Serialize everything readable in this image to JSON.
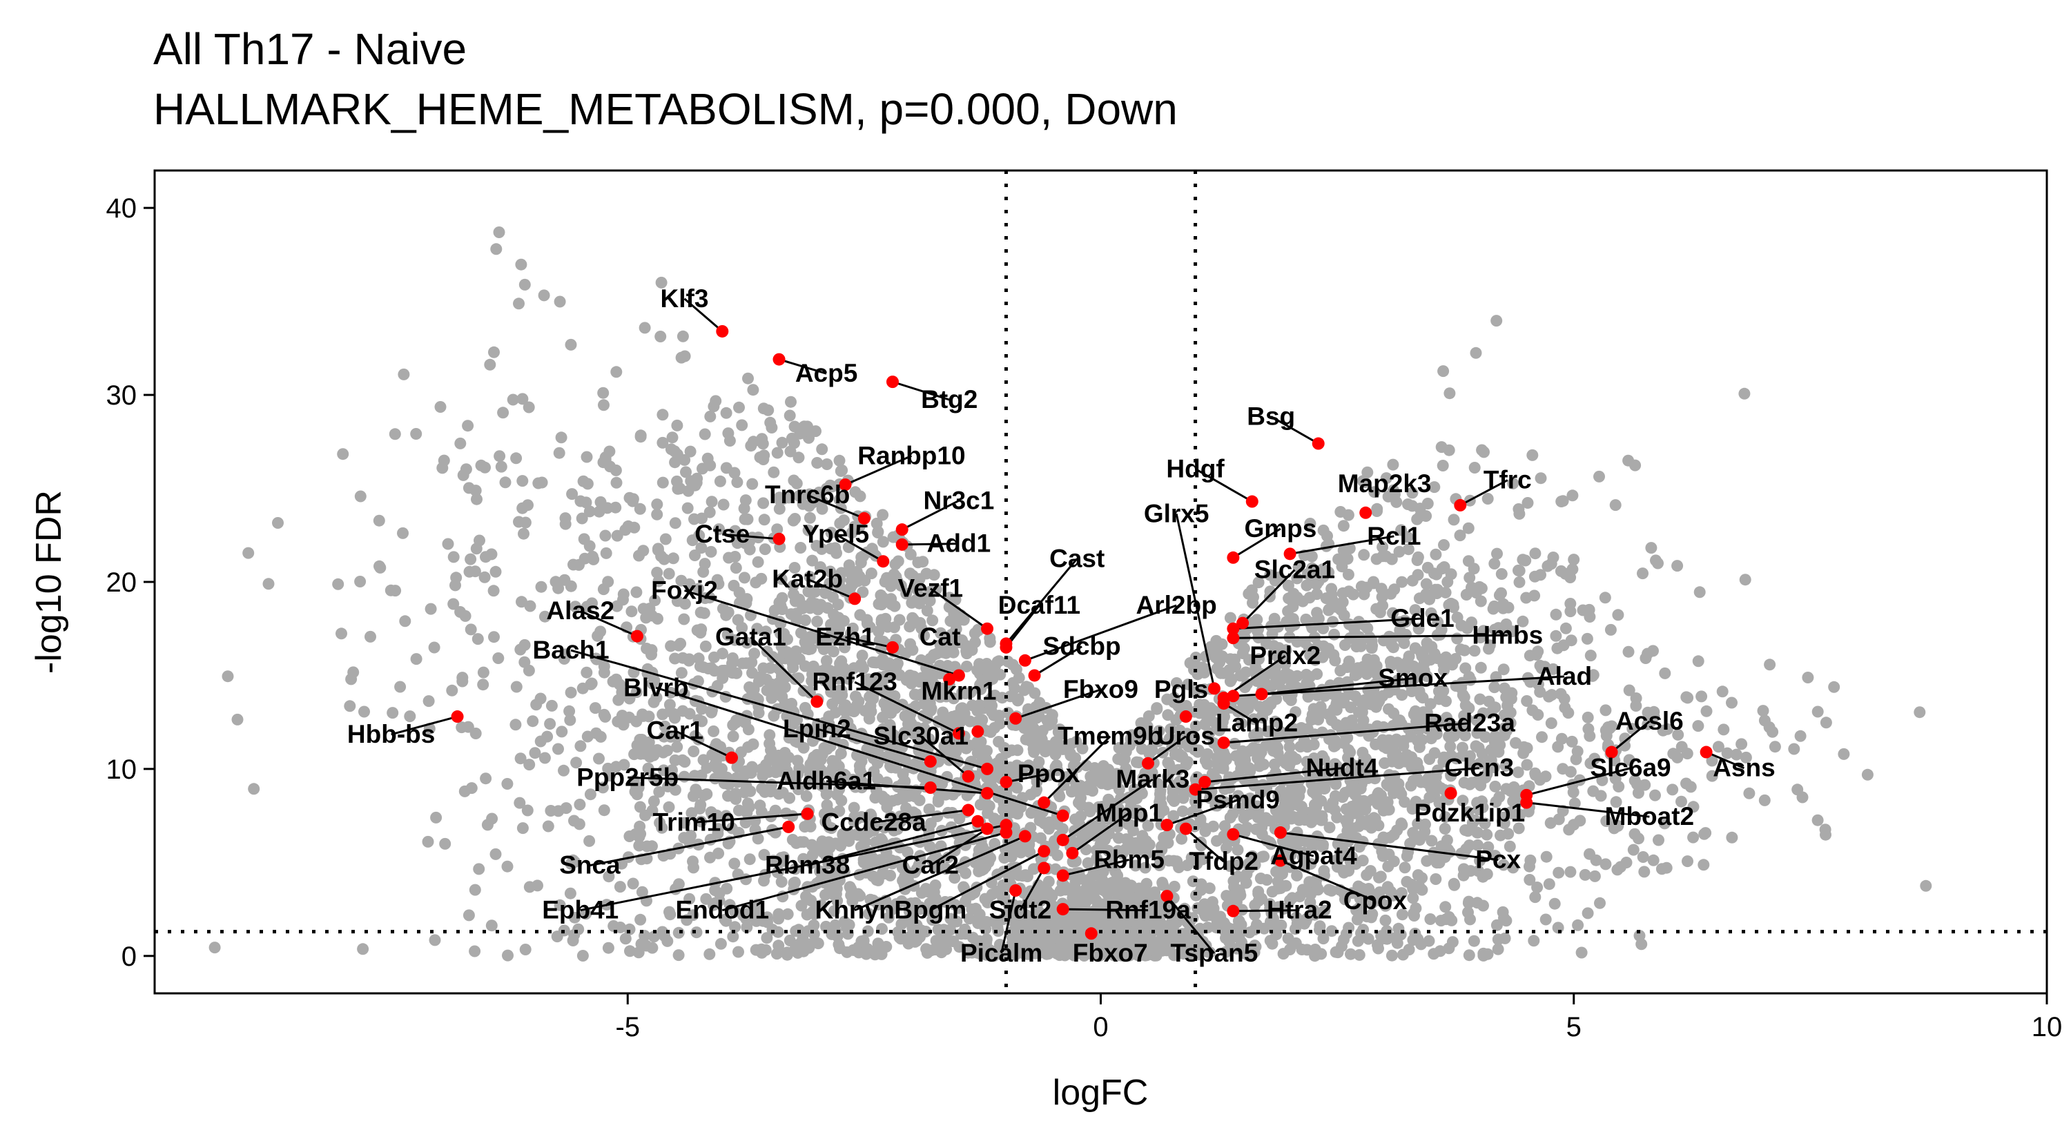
{
  "chart_data": {
    "type": "scatter",
    "title": "All Th17 - Naive",
    "subtitle": "HALLMARK_HEME_METABOLISM, p=0.000, Down",
    "xlabel": "logFC",
    "ylabel": "-log10 FDR",
    "xlim": [
      -10,
      10
    ],
    "ylim": [
      -2,
      42
    ],
    "x_ticks": [
      -5,
      0,
      5,
      10
    ],
    "y_ticks": [
      0,
      10,
      20,
      30,
      40
    ],
    "threshold_lines": {
      "logFC": [
        -1,
        1
      ],
      "neg_log10_fdr": 1.3
    },
    "grid": false,
    "colors": {
      "background_points": "#aaaaaa",
      "highlight_points": "#ff0000"
    },
    "highlighted_genes": [
      {
        "gene": "Klf3",
        "x": -4.0,
        "y": 33.4
      },
      {
        "gene": "Acp5",
        "x": -3.4,
        "y": 31.9
      },
      {
        "gene": "Btg2",
        "x": -2.2,
        "y": 30.7
      },
      {
        "gene": "Ranbp10",
        "x": -2.7,
        "y": 25.2
      },
      {
        "gene": "Tnrc6b",
        "x": -2.5,
        "y": 23.4
      },
      {
        "gene": "Nr3c1",
        "x": -2.1,
        "y": 22.8
      },
      {
        "gene": "Ctse",
        "x": -3.4,
        "y": 22.3
      },
      {
        "gene": "Ypel5",
        "x": -2.3,
        "y": 21.1
      },
      {
        "gene": "Add1",
        "x": -2.1,
        "y": 22.0
      },
      {
        "gene": "Kat2b",
        "x": -2.6,
        "y": 19.1
      },
      {
        "gene": "Foxj2",
        "x": -1.5,
        "y": 15.0
      },
      {
        "gene": "Alas2",
        "x": -4.9,
        "y": 17.1
      },
      {
        "gene": "Cast",
        "x": -1.0,
        "y": 16.7
      },
      {
        "gene": "Vezf1",
        "x": -1.2,
        "y": 17.5
      },
      {
        "gene": "Dcaf11",
        "x": -1.0,
        "y": 16.5
      },
      {
        "gene": "Arl2bp",
        "x": -0.8,
        "y": 15.8
      },
      {
        "gene": "Ezh1",
        "x": -2.2,
        "y": 16.5
      },
      {
        "gene": "Cat",
        "x": -1.6,
        "y": 14.8
      },
      {
        "gene": "Sdcbp",
        "x": -0.7,
        "y": 15.0
      },
      {
        "gene": "Bach1",
        "x": -1.2,
        "y": 10.0
      },
      {
        "gene": "Gata1",
        "x": -3.0,
        "y": 13.6
      },
      {
        "gene": "Rnf123",
        "x": -1.5,
        "y": 11.9
      },
      {
        "gene": "Mkrn1",
        "x": -1.3,
        "y": 12.0
      },
      {
        "gene": "Fbxo9",
        "x": -0.9,
        "y": 12.7
      },
      {
        "gene": "Blvrb",
        "x": -0.4,
        "y": 7.5
      },
      {
        "gene": "Car1",
        "x": -3.9,
        "y": 10.6
      },
      {
        "gene": "Lpin2",
        "x": -1.8,
        "y": 10.4
      },
      {
        "gene": "Slc30a1",
        "x": -1.4,
        "y": 9.6
      },
      {
        "gene": "Tmem9b",
        "x": -0.6,
        "y": 8.2
      },
      {
        "gene": "Ppp2r5b",
        "x": -1.8,
        "y": 9.0
      },
      {
        "gene": "Aldh6a1",
        "x": -1.2,
        "y": 8.7
      },
      {
        "gene": "Ppox",
        "x": -1.0,
        "y": 9.3
      },
      {
        "gene": "Trim10",
        "x": -3.1,
        "y": 7.6
      },
      {
        "gene": "Ccdc28a",
        "x": -1.4,
        "y": 7.8
      },
      {
        "gene": "Snca",
        "x": -3.3,
        "y": 6.9
      },
      {
        "gene": "Rbm38",
        "x": -1.3,
        "y": 7.2
      },
      {
        "gene": "Car2",
        "x": -1.2,
        "y": 6.8
      },
      {
        "gene": "Epb41",
        "x": -1.0,
        "y": 7.0
      },
      {
        "gene": "Endod1",
        "x": -1.0,
        "y": 6.6
      },
      {
        "gene": "Khnyn",
        "x": -0.8,
        "y": 6.4
      },
      {
        "gene": "Bpgm",
        "x": -0.6,
        "y": 5.6
      },
      {
        "gene": "Sidt2",
        "x": -0.6,
        "y": 4.7
      },
      {
        "gene": "Picalm",
        "x": -0.9,
        "y": 3.5
      },
      {
        "gene": "Mark3",
        "x": -0.4,
        "y": 6.2
      },
      {
        "gene": "Mpp1",
        "x": -0.3,
        "y": 5.5
      },
      {
        "gene": "Rbm5",
        "x": -0.4,
        "y": 4.3
      },
      {
        "gene": "Rnf19a",
        "x": -0.4,
        "y": 2.5
      },
      {
        "gene": "Fbxo7",
        "x": -0.1,
        "y": 1.2
      },
      {
        "gene": "Bsg",
        "x": 2.3,
        "y": 27.4
      },
      {
        "gene": "Hdgf",
        "x": 1.6,
        "y": 24.3
      },
      {
        "gene": "Map2k3",
        "x": 2.8,
        "y": 23.7
      },
      {
        "gene": "Tfrc",
        "x": 3.8,
        "y": 24.1
      },
      {
        "gene": "Glrx5",
        "x": 1.2,
        "y": 14.3
      },
      {
        "gene": "Gmps",
        "x": 1.4,
        "y": 21.3
      },
      {
        "gene": "Rcl1",
        "x": 2.0,
        "y": 21.5
      },
      {
        "gene": "Slc2a1",
        "x": 1.5,
        "y": 17.8
      },
      {
        "gene": "Gde1",
        "x": 1.4,
        "y": 17.5
      },
      {
        "gene": "Hmbs",
        "x": 1.4,
        "y": 17.0
      },
      {
        "gene": "Prdx2",
        "x": 1.3,
        "y": 13.8
      },
      {
        "gene": "Smox",
        "x": 1.7,
        "y": 14.0
      },
      {
        "gene": "Pgls",
        "x": 0.9,
        "y": 12.8
      },
      {
        "gene": "Alad",
        "x": 1.4,
        "y": 13.9
      },
      {
        "gene": "Lamp2",
        "x": 1.3,
        "y": 13.5
      },
      {
        "gene": "Uros",
        "x": 0.5,
        "y": 10.3
      },
      {
        "gene": "Rad23a",
        "x": 1.3,
        "y": 11.4
      },
      {
        "gene": "Acsl6",
        "x": 5.4,
        "y": 10.9
      },
      {
        "gene": "Nudt4",
        "x": 1.1,
        "y": 9.3
      },
      {
        "gene": "Clcn3",
        "x": 1.0,
        "y": 8.9
      },
      {
        "gene": "Slc6a9",
        "x": 4.5,
        "y": 8.6
      },
      {
        "gene": "Asns",
        "x": 6.4,
        "y": 10.9
      },
      {
        "gene": "Psmd9",
        "x": 0.7,
        "y": 7.0
      },
      {
        "gene": "Pdzk1ip1",
        "x": 3.7,
        "y": 8.7
      },
      {
        "gene": "Mboat2",
        "x": 4.5,
        "y": 8.2
      },
      {
        "gene": "Tfdp2",
        "x": 0.9,
        "y": 6.8
      },
      {
        "gene": "Agpat4",
        "x": 1.4,
        "y": 6.5
      },
      {
        "gene": "Pcx",
        "x": 1.9,
        "y": 6.6
      },
      {
        "gene": "Cpox",
        "x": 1.9,
        "y": 5.1
      },
      {
        "gene": "Htra2",
        "x": 1.4,
        "y": 2.4
      },
      {
        "gene": "Tspan5",
        "x": 0.7,
        "y": 3.2
      },
      {
        "gene": "Hbb-bs",
        "x": -6.8,
        "y": 12.8
      }
    ],
    "label_positions": [
      {
        "gene": "Klf3",
        "lx": -4.4,
        "ly": 34.7
      },
      {
        "gene": "Acp5",
        "lx": -2.9,
        "ly": 30.7
      },
      {
        "gene": "Btg2",
        "lx": -1.6,
        "ly": 29.3
      },
      {
        "gene": "Ranbp10",
        "lx": -2.0,
        "ly": 26.3
      },
      {
        "gene": "Tnrc6b",
        "lx": -3.1,
        "ly": 24.2
      },
      {
        "gene": "Nr3c1",
        "lx": -1.5,
        "ly": 23.9
      },
      {
        "gene": "Ctse",
        "lx": -4.0,
        "ly": 22.1
      },
      {
        "gene": "Ypel5",
        "lx": -2.8,
        "ly": 22.1
      },
      {
        "gene": "Add1",
        "lx": -1.5,
        "ly": 21.6
      },
      {
        "gene": "Kat2b",
        "lx": -3.1,
        "ly": 19.7
      },
      {
        "gene": "Foxj2",
        "lx": -4.4,
        "ly": 19.1
      },
      {
        "gene": "Alas2",
        "lx": -5.5,
        "ly": 18.0
      },
      {
        "gene": "Cast",
        "lx": -0.25,
        "ly": 20.8
      },
      {
        "gene": "Vezf1",
        "lx": -1.8,
        "ly": 19.2
      },
      {
        "gene": "Dcaf11",
        "lx": -0.65,
        "ly": 18.3
      },
      {
        "gene": "Arl2bp",
        "lx": 0.8,
        "ly": 18.3
      },
      {
        "gene": "Ezh1",
        "lx": -2.7,
        "ly": 16.6
      },
      {
        "gene": "Cat",
        "lx": -1.7,
        "ly": 16.6
      },
      {
        "gene": "Sdcbp",
        "lx": -0.2,
        "ly": 16.1
      },
      {
        "gene": "Bach1",
        "lx": -5.6,
        "ly": 15.9
      },
      {
        "gene": "Gata1",
        "lx": -3.7,
        "ly": 16.6
      },
      {
        "gene": "Rnf123",
        "lx": -2.6,
        "ly": 14.2
      },
      {
        "gene": "Mkrn1",
        "lx": -1.5,
        "ly": 13.7
      },
      {
        "gene": "Fbxo9",
        "lx": 0.0,
        "ly": 13.8
      },
      {
        "gene": "Blvrb",
        "lx": -4.7,
        "ly": 13.9
      },
      {
        "gene": "Car1",
        "lx": -4.5,
        "ly": 11.6
      },
      {
        "gene": "Lpin2",
        "lx": -3.0,
        "ly": 11.7
      },
      {
        "gene": "Slc30a1",
        "lx": -1.9,
        "ly": 11.3
      },
      {
        "gene": "Tmem9b",
        "lx": 0.1,
        "ly": 11.3
      },
      {
        "gene": "Ppp2r5b",
        "lx": -5.0,
        "ly": 9.1
      },
      {
        "gene": "Aldh6a1",
        "lx": -2.9,
        "ly": 8.9
      },
      {
        "gene": "Ppox",
        "lx": -0.55,
        "ly": 9.3
      },
      {
        "gene": "Trim10",
        "lx": -4.3,
        "ly": 6.7
      },
      {
        "gene": "Ccdc28a",
        "lx": -2.4,
        "ly": 6.7
      },
      {
        "gene": "Snca",
        "lx": -5.4,
        "ly": 4.4
      },
      {
        "gene": "Rbm38",
        "lx": -3.1,
        "ly": 4.4
      },
      {
        "gene": "Car2",
        "lx": -1.8,
        "ly": 4.4
      },
      {
        "gene": "Epb41",
        "lx": -5.5,
        "ly": 2.0
      },
      {
        "gene": "Endod1",
        "lx": -4.0,
        "ly": 2.0
      },
      {
        "gene": "Khnyn",
        "lx": -2.6,
        "ly": 2.0
      },
      {
        "gene": "Bpgm",
        "lx": -1.8,
        "ly": 2.0
      },
      {
        "gene": "Sidt2",
        "lx": -0.85,
        "ly": 2.0
      },
      {
        "gene": "Picalm",
        "lx": -1.05,
        "ly": -0.3
      },
      {
        "gene": "Mark3",
        "lx": 0.55,
        "ly": 9.0
      },
      {
        "gene": "Mpp1",
        "lx": 0.3,
        "ly": 7.2
      },
      {
        "gene": "Rbm5",
        "lx": 0.3,
        "ly": 4.7
      },
      {
        "gene": "Rnf19a",
        "lx": 0.5,
        "ly": 2.0
      },
      {
        "gene": "Fbxo7",
        "lx": 0.1,
        "ly": -0.3
      },
      {
        "gene": "Bsg",
        "lx": 1.8,
        "ly": 28.4
      },
      {
        "gene": "Hdgf",
        "lx": 1.0,
        "ly": 25.6
      },
      {
        "gene": "Map2k3",
        "lx": 3.0,
        "ly": 24.8
      },
      {
        "gene": "Tfrc",
        "lx": 4.3,
        "ly": 25.0
      },
      {
        "gene": "Glrx5",
        "lx": 0.8,
        "ly": 23.2
      },
      {
        "gene": "Gmps",
        "lx": 1.9,
        "ly": 22.4
      },
      {
        "gene": "Rcl1",
        "lx": 3.1,
        "ly": 22.0
      },
      {
        "gene": "Slc2a1",
        "lx": 2.05,
        "ly": 20.2
      },
      {
        "gene": "Gde1",
        "lx": 3.4,
        "ly": 17.6
      },
      {
        "gene": "Hmbs",
        "lx": 4.3,
        "ly": 16.7
      },
      {
        "gene": "Prdx2",
        "lx": 1.95,
        "ly": 15.6
      },
      {
        "gene": "Smox",
        "lx": 3.3,
        "ly": 14.4
      },
      {
        "gene": "Pgls",
        "lx": 0.85,
        "ly": 13.8
      },
      {
        "gene": "Alad",
        "lx": 4.9,
        "ly": 14.5
      },
      {
        "gene": "Lamp2",
        "lx": 1.65,
        "ly": 12.0
      },
      {
        "gene": "Uros",
        "lx": 0.9,
        "ly": 11.3
      },
      {
        "gene": "Rad23a",
        "lx": 3.9,
        "ly": 12.0
      },
      {
        "gene": "Acsl6",
        "lx": 5.8,
        "ly": 12.1
      },
      {
        "gene": "Nudt4",
        "lx": 2.55,
        "ly": 9.6
      },
      {
        "gene": "Clcn3",
        "lx": 4.0,
        "ly": 9.6
      },
      {
        "gene": "Slc6a9",
        "lx": 5.6,
        "ly": 9.6
      },
      {
        "gene": "Asns",
        "lx": 6.8,
        "ly": 9.6
      },
      {
        "gene": "Psmd9",
        "lx": 1.45,
        "ly": 7.9
      },
      {
        "gene": "Pdzk1ip1",
        "lx": 3.9,
        "ly": 7.2
      },
      {
        "gene": "Mboat2",
        "lx": 5.8,
        "ly": 7.0
      },
      {
        "gene": "Tfdp2",
        "lx": 1.3,
        "ly": 4.6
      },
      {
        "gene": "Agpat4",
        "lx": 2.25,
        "ly": 4.9
      },
      {
        "gene": "Pcx",
        "lx": 4.2,
        "ly": 4.7
      },
      {
        "gene": "Cpox",
        "lx": 2.9,
        "ly": 2.5
      },
      {
        "gene": "Htra2",
        "lx": 2.1,
        "ly": 2.0
      },
      {
        "gene": "Tspan5",
        "lx": 1.2,
        "ly": -0.3
      },
      {
        "gene": "Hbb-bs",
        "lx": -7.5,
        "ly": 11.4
      }
    ],
    "background_clusters": [
      {
        "cx": -2.3,
        "cy": 11,
        "sx": 1.6,
        "sy": 7.5,
        "n": 1500
      },
      {
        "cx": -4.2,
        "cy": 15,
        "sx": 1.7,
        "sy": 8,
        "n": 450
      },
      {
        "cx": -2.2,
        "cy": 26,
        "sx": 1.4,
        "sy": 5,
        "n": 350
      },
      {
        "cx": -6.3,
        "cy": 26,
        "sx": 1.0,
        "sy": 5,
        "n": 60
      },
      {
        "cx": 2.3,
        "cy": 10,
        "sx": 1.4,
        "sy": 6.5,
        "n": 1400
      },
      {
        "cx": 3.4,
        "cy": 16,
        "sx": 1.4,
        "sy": 5.5,
        "n": 350
      },
      {
        "cx": 5.9,
        "cy": 10,
        "sx": 1.1,
        "sy": 3.2,
        "n": 120
      },
      {
        "cx": 0.0,
        "cy": 1.2,
        "sx": 0.7,
        "sy": 1.2,
        "n": 450
      }
    ]
  }
}
